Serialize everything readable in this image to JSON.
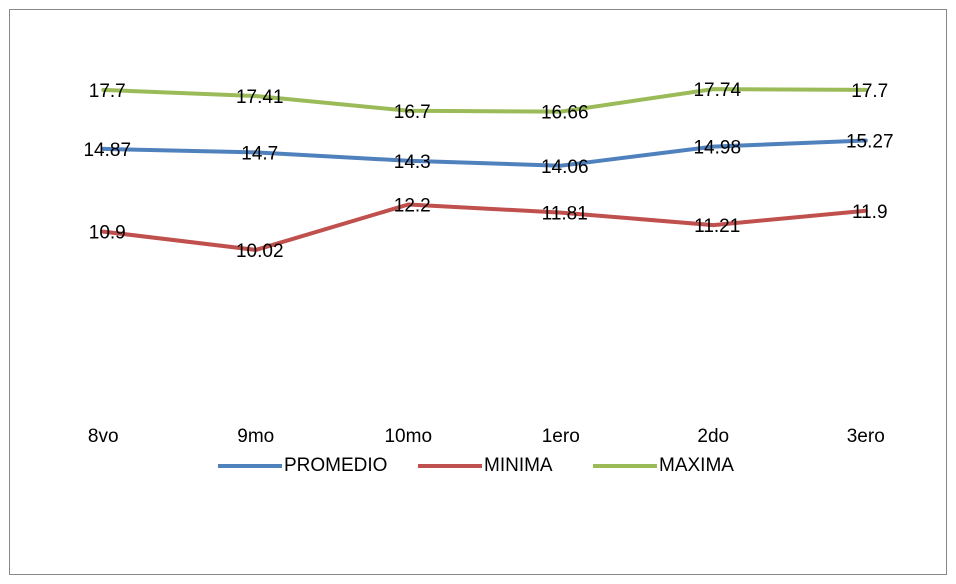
{
  "chart_data": {
    "type": "line",
    "categories": [
      "8vo",
      "9mo",
      "10mo",
      "1ero",
      "2do",
      "3ero"
    ],
    "series": [
      {
        "name": "PROMEDIO",
        "color": "#4f81bd",
        "values": [
          14.87,
          14.7,
          14.3,
          14.06,
          14.98,
          15.27
        ]
      },
      {
        "name": "MINIMA",
        "color": "#c0504d",
        "values": [
          10.9,
          10.02,
          12.2,
          11.81,
          11.21,
          11.9
        ]
      },
      {
        "name": "MAXIMA",
        "color": "#9bbb59",
        "values": [
          17.7,
          17.41,
          16.7,
          16.66,
          17.74,
          17.7
        ]
      }
    ],
    "ylim": [
      2,
      20
    ],
    "legend": "bottom"
  }
}
